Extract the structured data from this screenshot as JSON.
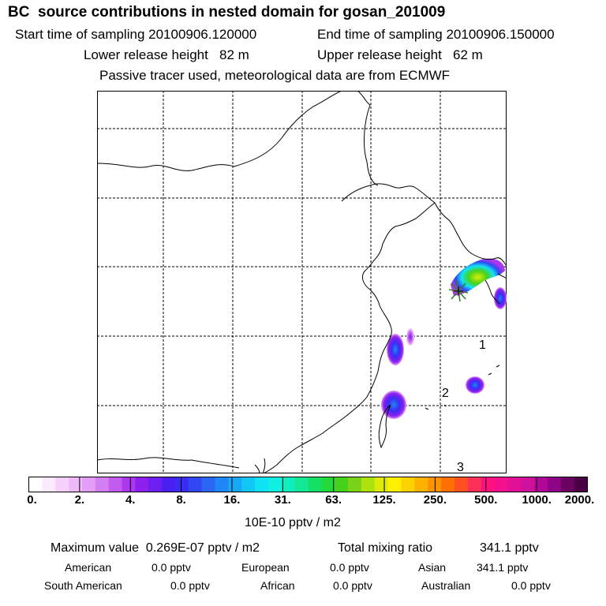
{
  "header": {
    "title": "BC  source contributions in nested domain for gosan_201009",
    "start_sampling": "Start time of sampling 20100906.120000",
    "end_sampling": "End time of sampling 20100906.150000",
    "lower_release": "Lower release height   82 m",
    "upper_release": "Upper release height   62 m",
    "tracer_note": "Passive tracer used, meteorological data are from ECMWF"
  },
  "map": {
    "labels": {
      "p1": "1",
      "p2": "2",
      "p3": "3"
    },
    "colors": {
      "coast": "#000000",
      "grid": "#000000",
      "receptor": "#3a7a2a"
    }
  },
  "colorbar": {
    "colors": [
      "#ffffff",
      "#fbe9fd",
      "#f6d2fb",
      "#eeb9f9",
      "#e39df6",
      "#d47ef4",
      "#c25cf1",
      "#ad37ee",
      "#8d20ee",
      "#6c1ff0",
      "#4a1ff2",
      "#3a2cf4",
      "#3048f4",
      "#2a66f4",
      "#1f86f6",
      "#18a6f6",
      "#12c6f6",
      "#10e2f6",
      "#0ff0e2",
      "#10eebe",
      "#12e896",
      "#14e066",
      "#22d83a",
      "#46d21c",
      "#7ad316",
      "#aee20e",
      "#dcec08",
      "#fff000",
      "#fed200",
      "#feb200",
      "#fe9200",
      "#ff7000",
      "#ff5022",
      "#ff3058",
      "#ff1280",
      "#f5118d",
      "#e21097",
      "#cf109b",
      "#b1089a",
      "#8f0486",
      "#6b0262",
      "#4a0144"
    ],
    "ticks": [
      "0.",
      "2.",
      "4.",
      "8.",
      "16.",
      "31.",
      "63.",
      "125.",
      "250.",
      "500.",
      "1000.",
      "2000."
    ],
    "units": "10E-10 pptv / m2"
  },
  "summary": {
    "max_value": "Maximum value  0.269E-07 pptv / m2",
    "total_mixing": "Total mixing ratio",
    "total_mixing_value": "341.1 pptv",
    "american": "American",
    "american_value": "0.0 pptv",
    "european": "European",
    "european_value": "0.0 pptv",
    "asian": "Asian",
    "asian_value": "341.1 pptv",
    "south_american": "South American",
    "south_american_value": "0.0 pptv",
    "african": "African",
    "african_value": "0.0 pptv",
    "australian": "Australian",
    "australian_value": "0.0 pptv"
  }
}
